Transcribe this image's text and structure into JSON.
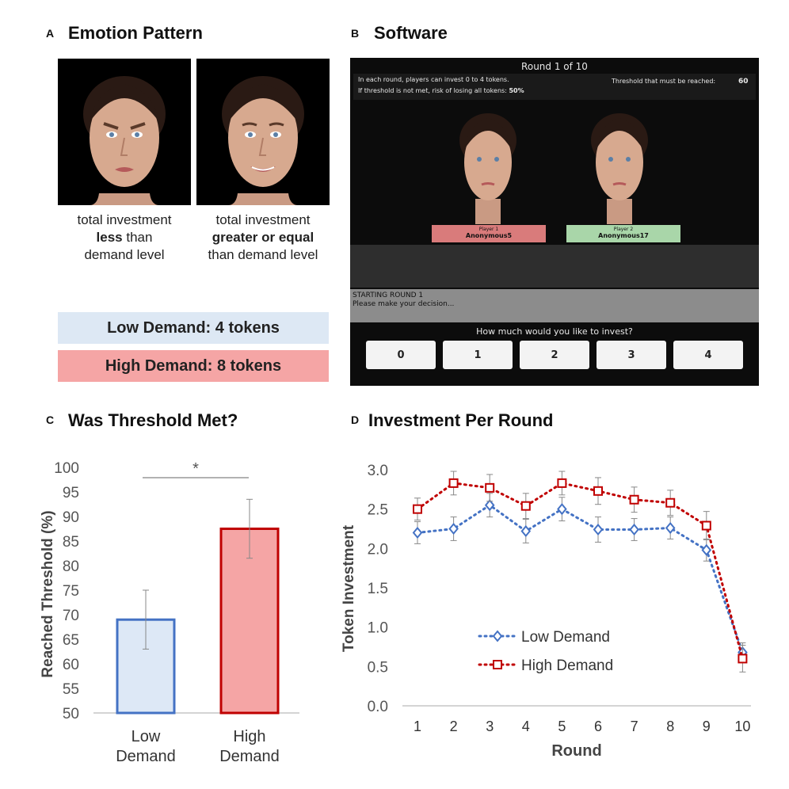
{
  "panel_a": {
    "letter": "A",
    "title": "Emotion Pattern",
    "left_caption": {
      "line1": "total investment",
      "bold": "less",
      "rest2": " than",
      "line3": "demand level"
    },
    "right_caption": {
      "line1": "total investment",
      "bold": "greater or equal",
      "line3": "than demand level"
    },
    "low_demand": "Low Demand: 4 tokens",
    "high_demand": "High Demand: 8 tokens",
    "low_color": "#dde8f4",
    "high_color": "#f5a5a5"
  },
  "panel_b": {
    "letter": "B",
    "title": "Software",
    "round_label": "Round 1 of 10",
    "info_line1": "In each round, players can invest 0 to 4 tokens.",
    "info_line2": "If threshold is not met, risk of losing all tokens:",
    "risk_value": "50%",
    "threshold_label": "Threshold that must be reached:",
    "threshold_value": "60",
    "player1_label": "Player 1",
    "player1_name": "Anonymous5",
    "player2_label": "Player 2",
    "player2_name": "Anonymous17",
    "player1_color": "#d97b7b",
    "player2_color": "#a9d6a9",
    "status_line1": "STARTING ROUND 1",
    "status_line2": "Please make your decision...",
    "question": "How much would you like to invest?",
    "options": [
      "0",
      "1",
      "2",
      "3",
      "4"
    ]
  },
  "panel_c": {
    "letter": "C",
    "title": "Was Threshold Met?",
    "significance": "*",
    "chart_data": {
      "type": "bar",
      "categories": [
        [
          "Low",
          "Demand"
        ],
        [
          "High",
          "Demand"
        ]
      ],
      "values": [
        69,
        87.5
      ],
      "errors": [
        6,
        6
      ],
      "ylabel": "Reached Threshold (%)",
      "ylim": [
        50,
        100
      ],
      "yticks": [
        50,
        55,
        60,
        65,
        70,
        75,
        80,
        85,
        90,
        95,
        100
      ],
      "colors": [
        {
          "fill": "#dde8f6",
          "stroke": "#4472c4"
        },
        {
          "fill": "#f5a5a5",
          "stroke": "#c00000"
        }
      ]
    }
  },
  "panel_d": {
    "letter": "D",
    "title": "Investment Per Round",
    "chart_data": {
      "type": "line",
      "x": [
        1,
        2,
        3,
        4,
        5,
        6,
        7,
        8,
        9,
        10
      ],
      "series": [
        {
          "name": "Low Demand",
          "values": [
            2.2,
            2.25,
            2.55,
            2.22,
            2.5,
            2.24,
            2.24,
            2.26,
            1.98,
            0.68
          ],
          "errors": [
            0.14,
            0.15,
            0.15,
            0.15,
            0.15,
            0.16,
            0.14,
            0.14,
            0.14,
            0.12
          ],
          "color": "#4472c4",
          "marker": "diamond"
        },
        {
          "name": "High Demand",
          "values": [
            2.5,
            2.83,
            2.77,
            2.54,
            2.83,
            2.73,
            2.62,
            2.58,
            2.29,
            0.6
          ],
          "errors": [
            0.14,
            0.15,
            0.17,
            0.16,
            0.15,
            0.17,
            0.16,
            0.16,
            0.18,
            0.17
          ],
          "color": "#c00000",
          "marker": "square"
        }
      ],
      "xlabel": "Round",
      "ylabel": "Token Investment",
      "ylim": [
        0,
        3.0
      ],
      "yticks": [
        "0.0",
        "0.5",
        "1.0",
        "1.5",
        "2.0",
        "2.5",
        "3.0"
      ],
      "legend_position": "lower-left"
    }
  }
}
